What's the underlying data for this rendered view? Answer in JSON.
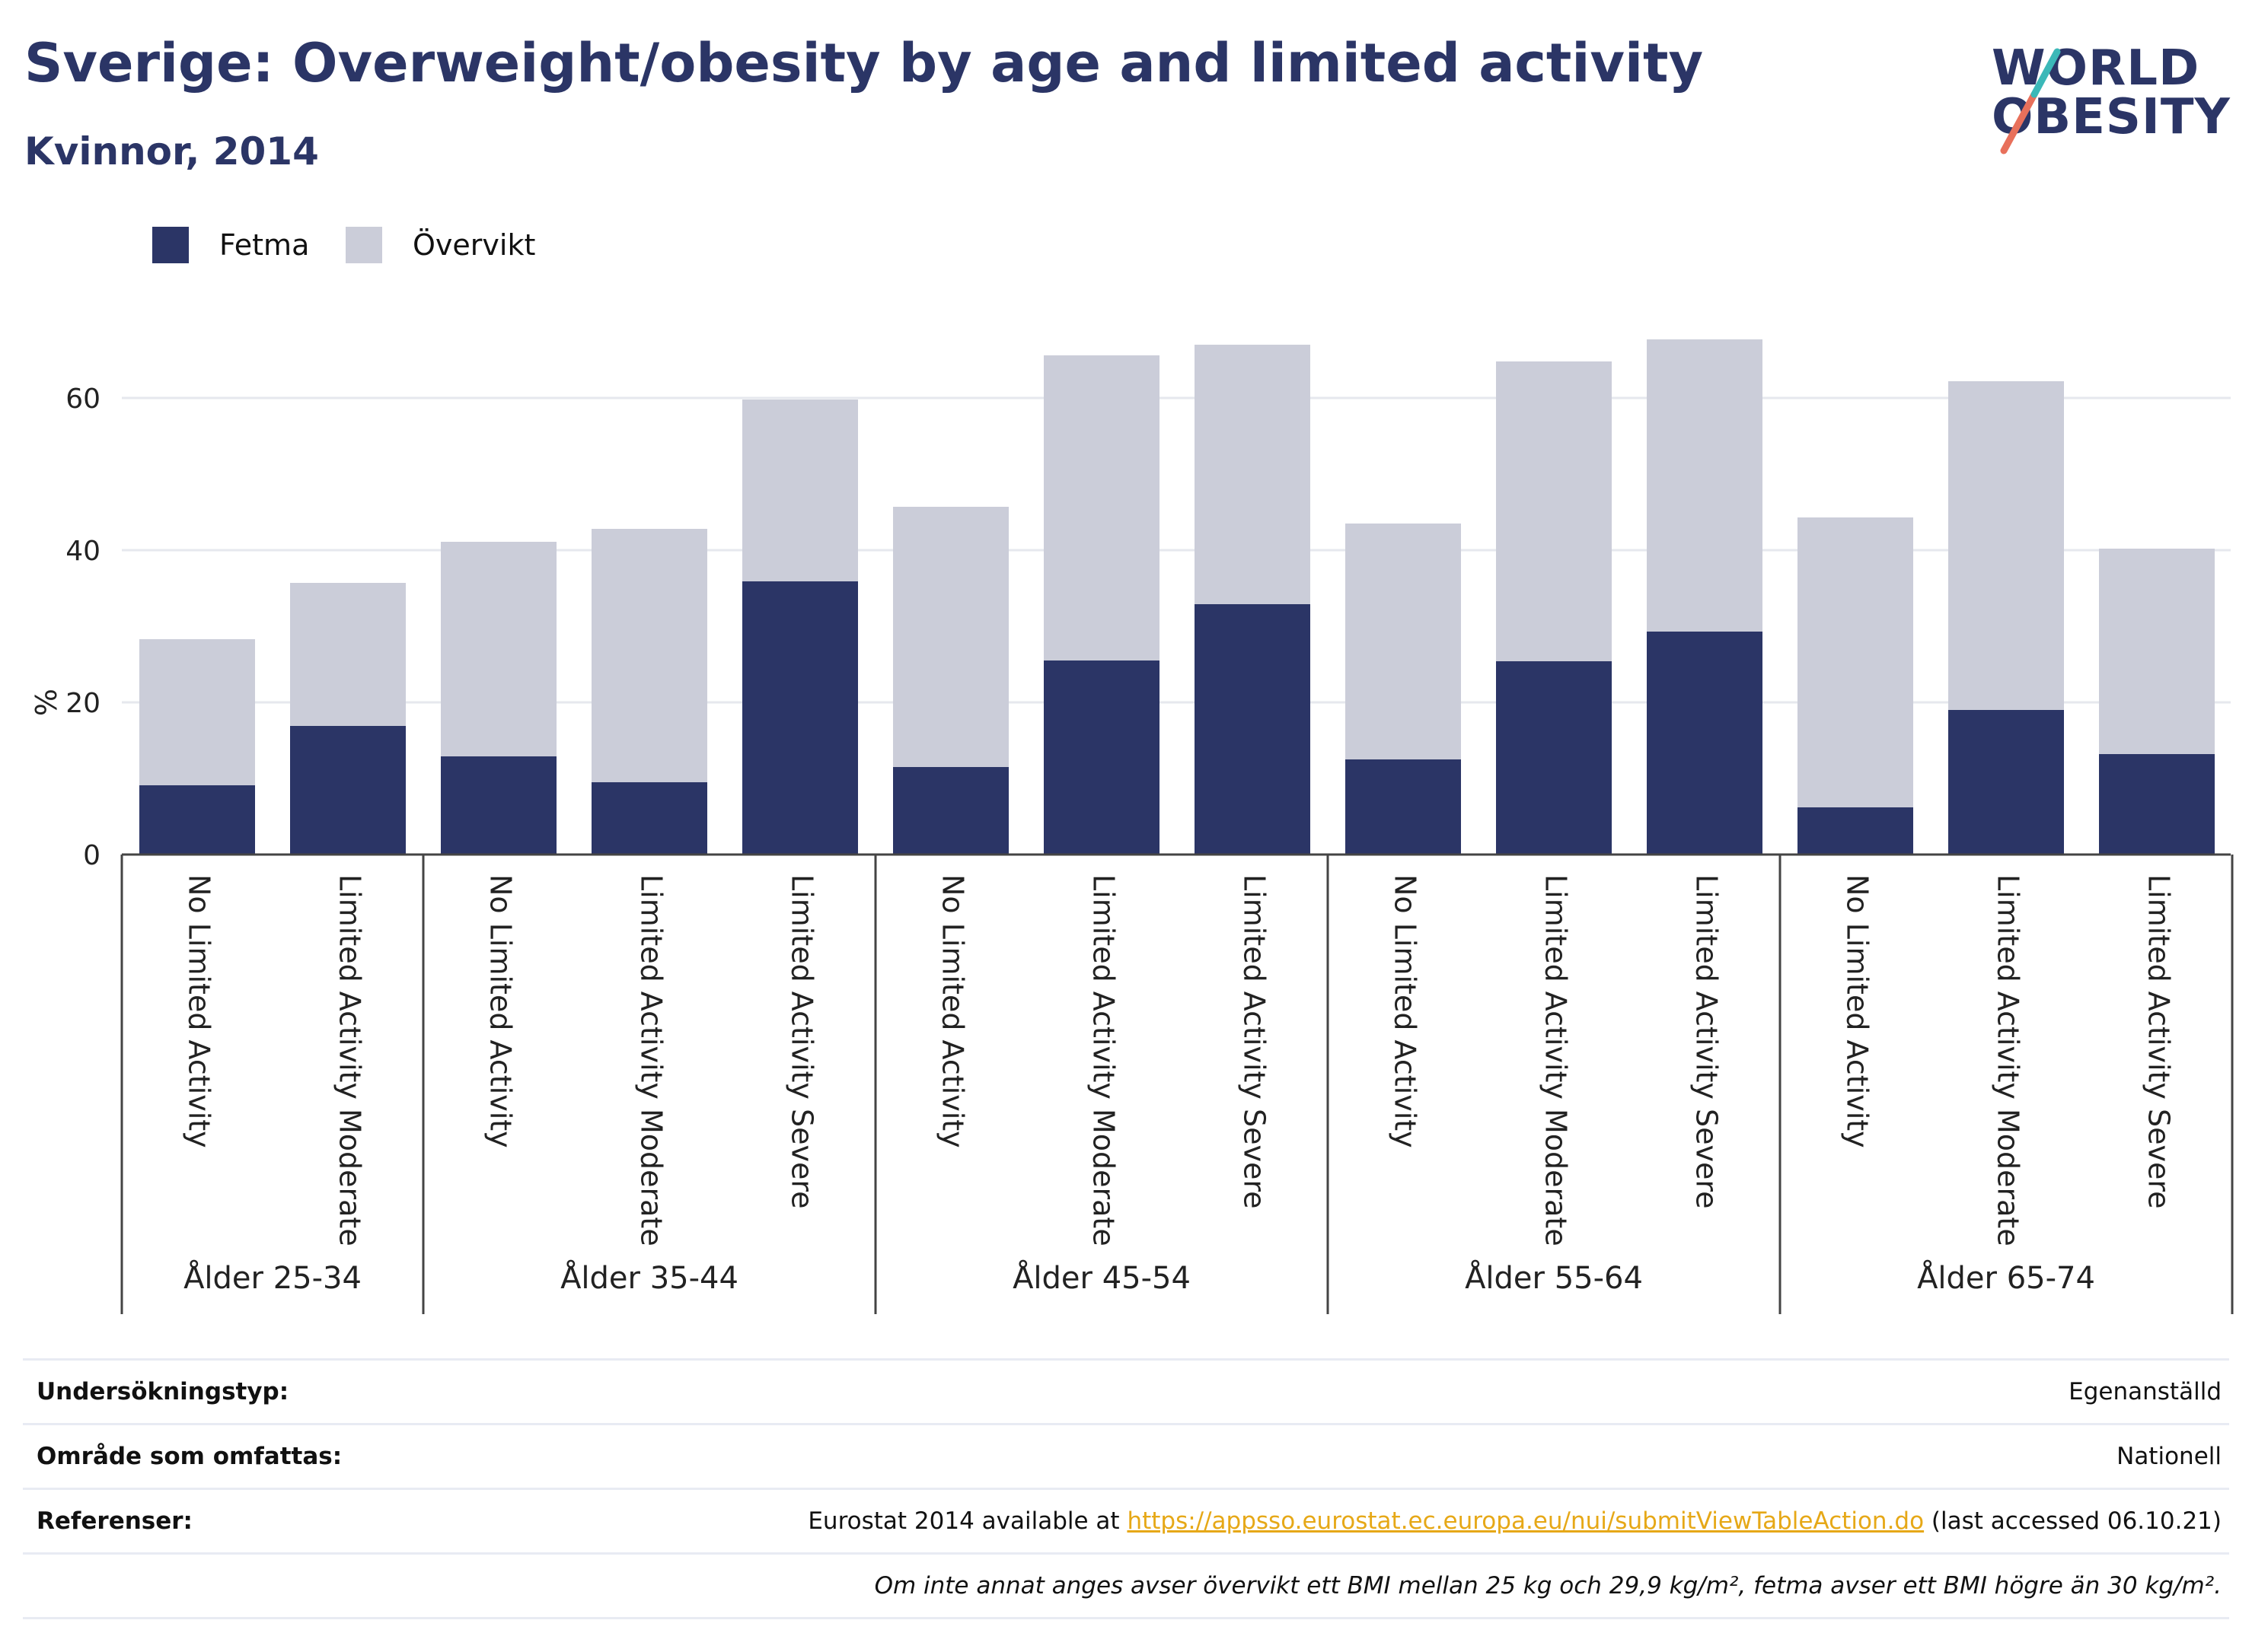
{
  "header": {
    "title": "Sverige: Overweight/obesity by age and limited activity",
    "subtitle": "Kvinnor, 2014"
  },
  "logo": {
    "line1": "WORLD",
    "line2": "OBESITY"
  },
  "legend": [
    {
      "label": "Fetma",
      "color": "#2b3566"
    },
    {
      "label": "Övervikt",
      "color": "#cbcdd9"
    }
  ],
  "chart_data": {
    "type": "bar",
    "stacked": true,
    "ylabel": "%",
    "ylim": [
      0,
      75
    ],
    "yticks": [
      0,
      20,
      40,
      60
    ],
    "grid": true,
    "legend_position": "top-left",
    "groups": [
      {
        "label": "Ålder 25-34",
        "bars": [
          {
            "category": "No Limited Activity",
            "fetma": 9.1,
            "overvikt": 19.2
          },
          {
            "category": "Limited Activity Moderate",
            "fetma": 16.9,
            "overvikt": 18.8
          }
        ]
      },
      {
        "label": "Ålder 35-44",
        "bars": [
          {
            "category": "No Limited Activity",
            "fetma": 12.9,
            "overvikt": 28.2
          },
          {
            "category": "Limited Activity Moderate",
            "fetma": 9.5,
            "overvikt": 33.3
          },
          {
            "category": "Limited Activity Severe",
            "fetma": 35.9,
            "overvikt": 23.9
          }
        ]
      },
      {
        "label": "Ålder 45-54",
        "bars": [
          {
            "category": "No Limited Activity",
            "fetma": 11.5,
            "overvikt": 34.2
          },
          {
            "category": "Limited Activity Moderate",
            "fetma": 25.5,
            "overvikt": 40.1
          },
          {
            "category": "Limited Activity Severe",
            "fetma": 32.9,
            "overvikt": 34.1
          }
        ]
      },
      {
        "label": "Ålder 55-64",
        "bars": [
          {
            "category": "No Limited Activity",
            "fetma": 12.5,
            "overvikt": 31.0
          },
          {
            "category": "Limited Activity Moderate",
            "fetma": 25.4,
            "overvikt": 39.4
          },
          {
            "category": "Limited Activity Severe",
            "fetma": 29.3,
            "overvikt": 38.4
          }
        ]
      },
      {
        "label": "Ålder 65-74",
        "bars": [
          {
            "category": "No Limited Activity",
            "fetma": 6.2,
            "overvikt": 38.1
          },
          {
            "category": "Limited Activity Moderate",
            "fetma": 19.0,
            "overvikt": 43.2
          },
          {
            "category": "Limited Activity Severe",
            "fetma": 13.2,
            "overvikt": 27.0
          }
        ]
      }
    ]
  },
  "meta": {
    "survey_label": "Undersökningstyp:",
    "survey_value": "Egenanställd",
    "area_label": "Område som omfattas:",
    "area_value": "Nationell",
    "ref_label": "Referenser:",
    "ref_prefix": "Eurostat 2014 available at ",
    "ref_link": "https://appsso.eurostat.ec.europa.eu/nui/submitViewTableAction.do",
    "ref_suffix": " (last accessed 06.10.21)",
    "note": "Om inte annat anges avser övervikt ett BMI mellan 25 kg och 29,9 kg/m², fetma avser ett BMI högre än 30 kg/m²."
  }
}
